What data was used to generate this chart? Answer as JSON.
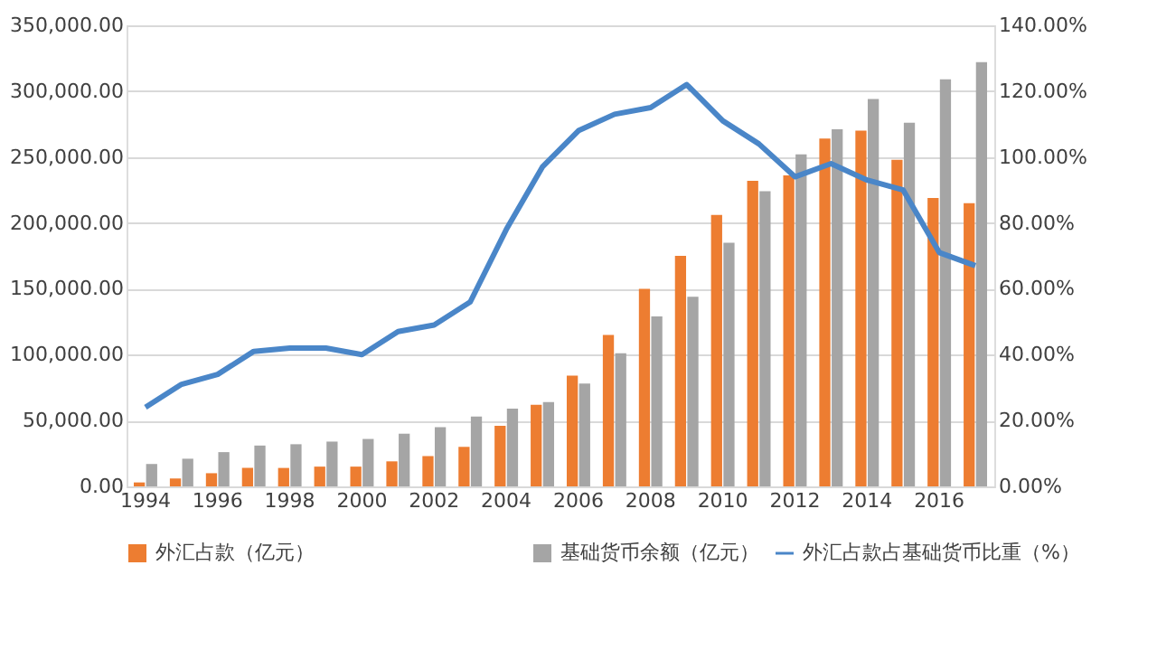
{
  "chart_data": {
    "type": "bar",
    "categories": [
      "1994",
      null,
      "1996",
      null,
      "1998",
      null,
      "2000",
      null,
      "2002",
      null,
      "2004",
      null,
      "2006",
      null,
      "2008",
      null,
      "2010",
      null,
      "2012",
      null,
      "2014",
      null,
      "2016",
      null
    ],
    "series": [
      {
        "name": "外汇占款（亿元）",
        "color": "#ed7d31",
        "values": [
          3000,
          6000,
          10000,
          14000,
          14000,
          15000,
          15000,
          19000,
          23000,
          30000,
          46000,
          62000,
          84000,
          115000,
          150000,
          175000,
          206000,
          232000,
          236000,
          264000,
          270000,
          248000,
          219000,
          215000
        ]
      },
      {
        "name": "基础货币余额（亿元）",
        "color": "#a5a5a5",
        "values": [
          17000,
          21000,
          26000,
          31000,
          32000,
          34000,
          36000,
          40000,
          45000,
          53000,
          59000,
          64000,
          78000,
          101000,
          129000,
          144000,
          185000,
          224000,
          252000,
          271000,
          294000,
          276000,
          309000,
          322000
        ]
      },
      {
        "name": "外汇占款占基础货币比重（%）",
        "color": "#4a86c8",
        "type": "line",
        "axis": "y2",
        "values": [
          24,
          31,
          34,
          41,
          42,
          42,
          40,
          47,
          49,
          56,
          78,
          97,
          108,
          113,
          115,
          122,
          111,
          104,
          94,
          98,
          93,
          90,
          71,
          67
        ]
      }
    ],
    "ylim": [
      0,
      350000
    ],
    "yticks": [
      {
        "value": 0,
        "label": "0.00"
      },
      {
        "value": 50000,
        "label": "50,000.00"
      },
      {
        "value": 100000,
        "label": "100,000.00"
      },
      {
        "value": 150000,
        "label": "150,000.00"
      },
      {
        "value": 200000,
        "label": "200,000.00"
      },
      {
        "value": 250000,
        "label": "250,000.00"
      },
      {
        "value": 300000,
        "label": "300,000.00"
      },
      {
        "value": 350000,
        "label": "350,000.00"
      }
    ],
    "y2lim": [
      0,
      140
    ],
    "y2ticks": [
      {
        "value": 0,
        "label": "0.00%"
      },
      {
        "value": 20,
        "label": "20.00%"
      },
      {
        "value": 40,
        "label": "40.00%"
      },
      {
        "value": 60,
        "label": "60.00%"
      },
      {
        "value": 80,
        "label": "80.00%"
      },
      {
        "value": 100,
        "label": "100.00%"
      },
      {
        "value": 120,
        "label": "120.00%"
      },
      {
        "value": 140,
        "label": "140.00%"
      }
    ],
    "grid": "y",
    "legend": "bottom",
    "line_style": "solid"
  }
}
